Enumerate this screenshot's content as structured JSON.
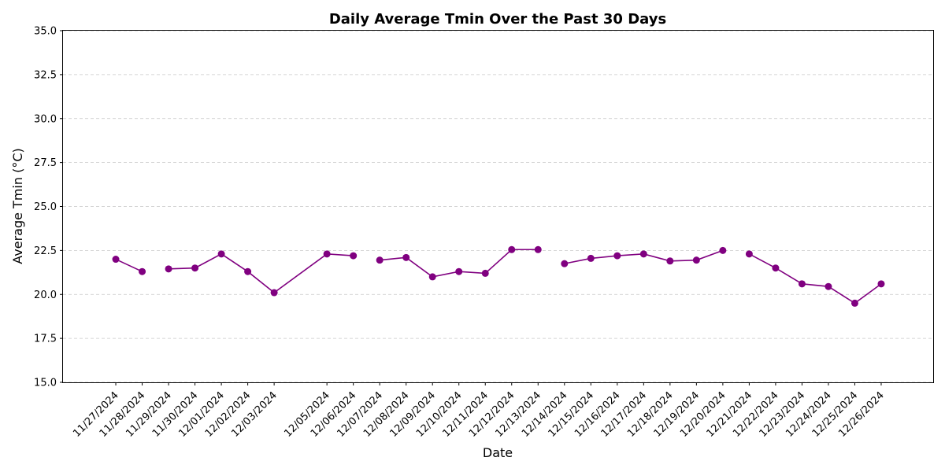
{
  "chart_data": {
    "type": "line",
    "title": "Daily Average Tmin Over the Past 30 Days",
    "xlabel": "Date",
    "ylabel": "Average Tmin (°C)",
    "ylim": [
      15.0,
      35.0
    ],
    "yticks": [
      "15.0",
      "17.5",
      "20.0",
      "22.5",
      "25.0",
      "27.5",
      "30.0",
      "32.5",
      "35.0"
    ],
    "grid": "y-dashed",
    "line_color": "#800080",
    "marker": "circle",
    "xlim": [
      "11/25/2024",
      "12/28/2024"
    ],
    "x": [
      "11/27/2024",
      "11/28/2024",
      "11/29/2024",
      "11/30/2024",
      "12/01/2024",
      "12/02/2024",
      "12/03/2024",
      "12/05/2024",
      "12/06/2024",
      "12/07/2024",
      "12/08/2024",
      "12/09/2024",
      "12/10/2024",
      "12/11/2024",
      "12/12/2024",
      "12/13/2024",
      "12/14/2024",
      "12/15/2024",
      "12/16/2024",
      "12/17/2024",
      "12/18/2024",
      "12/19/2024",
      "12/20/2024",
      "12/21/2024",
      "12/22/2024",
      "12/23/2024",
      "12/24/2024",
      "12/25/2024",
      "12/26/2024"
    ],
    "y": [
      22.0,
      21.3,
      21.45,
      21.5,
      22.3,
      21.3,
      20.1,
      22.3,
      22.2,
      21.95,
      22.1,
      21.0,
      21.3,
      21.2,
      22.55,
      22.55,
      21.75,
      22.05,
      22.2,
      22.3,
      21.9,
      21.95,
      22.5,
      22.3,
      21.5,
      20.6,
      20.45,
      19.5,
      20.6
    ],
    "segment_breaks_before": [
      "11/29/2024",
      "12/07/2024",
      "12/14/2024",
      "12/21/2024"
    ]
  }
}
